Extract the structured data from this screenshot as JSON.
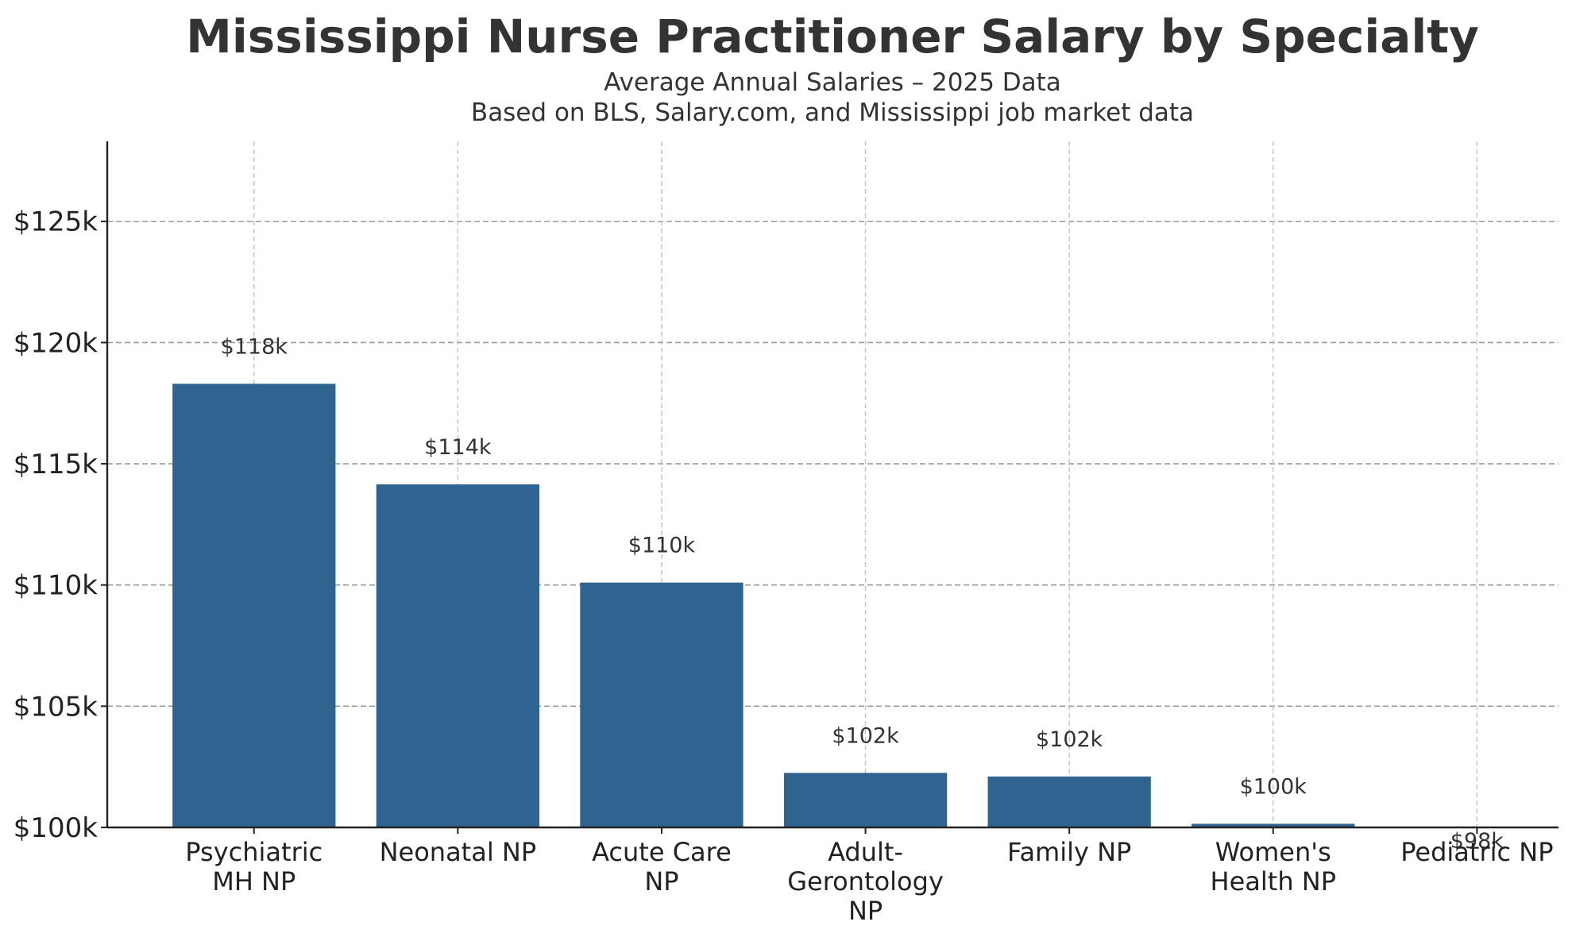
{
  "chart_data": {
    "type": "bar",
    "title": "Mississippi Nurse Practitioner Salary by Specialty",
    "subtitle_lines": [
      "Average Annual Salaries – 2025 Data",
      "Based on BLS, Salary.com, and Mississippi job market data"
    ],
    "xlabel": "",
    "ylabel": "",
    "categories": [
      [
        "Psychiatric",
        "MH NP"
      ],
      [
        "Neonatal NP"
      ],
      [
        "Acute Care",
        "NP"
      ],
      [
        "Adult-",
        "Gerontology",
        "NP"
      ],
      [
        "Family NP"
      ],
      [
        "Women's",
        "Health NP"
      ],
      [
        "Pediatric NP"
      ]
    ],
    "values": [
      118300,
      114150,
      110100,
      102250,
      102100,
      100150,
      97900
    ],
    "data_labels": [
      "$118k",
      "$114k",
      "$110k",
      "$102k",
      "$102k",
      "$100k",
      "$98k"
    ],
    "ylim": [
      100000,
      128300
    ],
    "yticks": [
      100000,
      105000,
      110000,
      115000,
      120000,
      125000
    ],
    "ytick_labels": [
      "$100k",
      "$105k",
      "$110k",
      "$115k",
      "$120k",
      "$125k"
    ],
    "bar_color": "#2f6491",
    "grid": true,
    "legend": "none"
  }
}
